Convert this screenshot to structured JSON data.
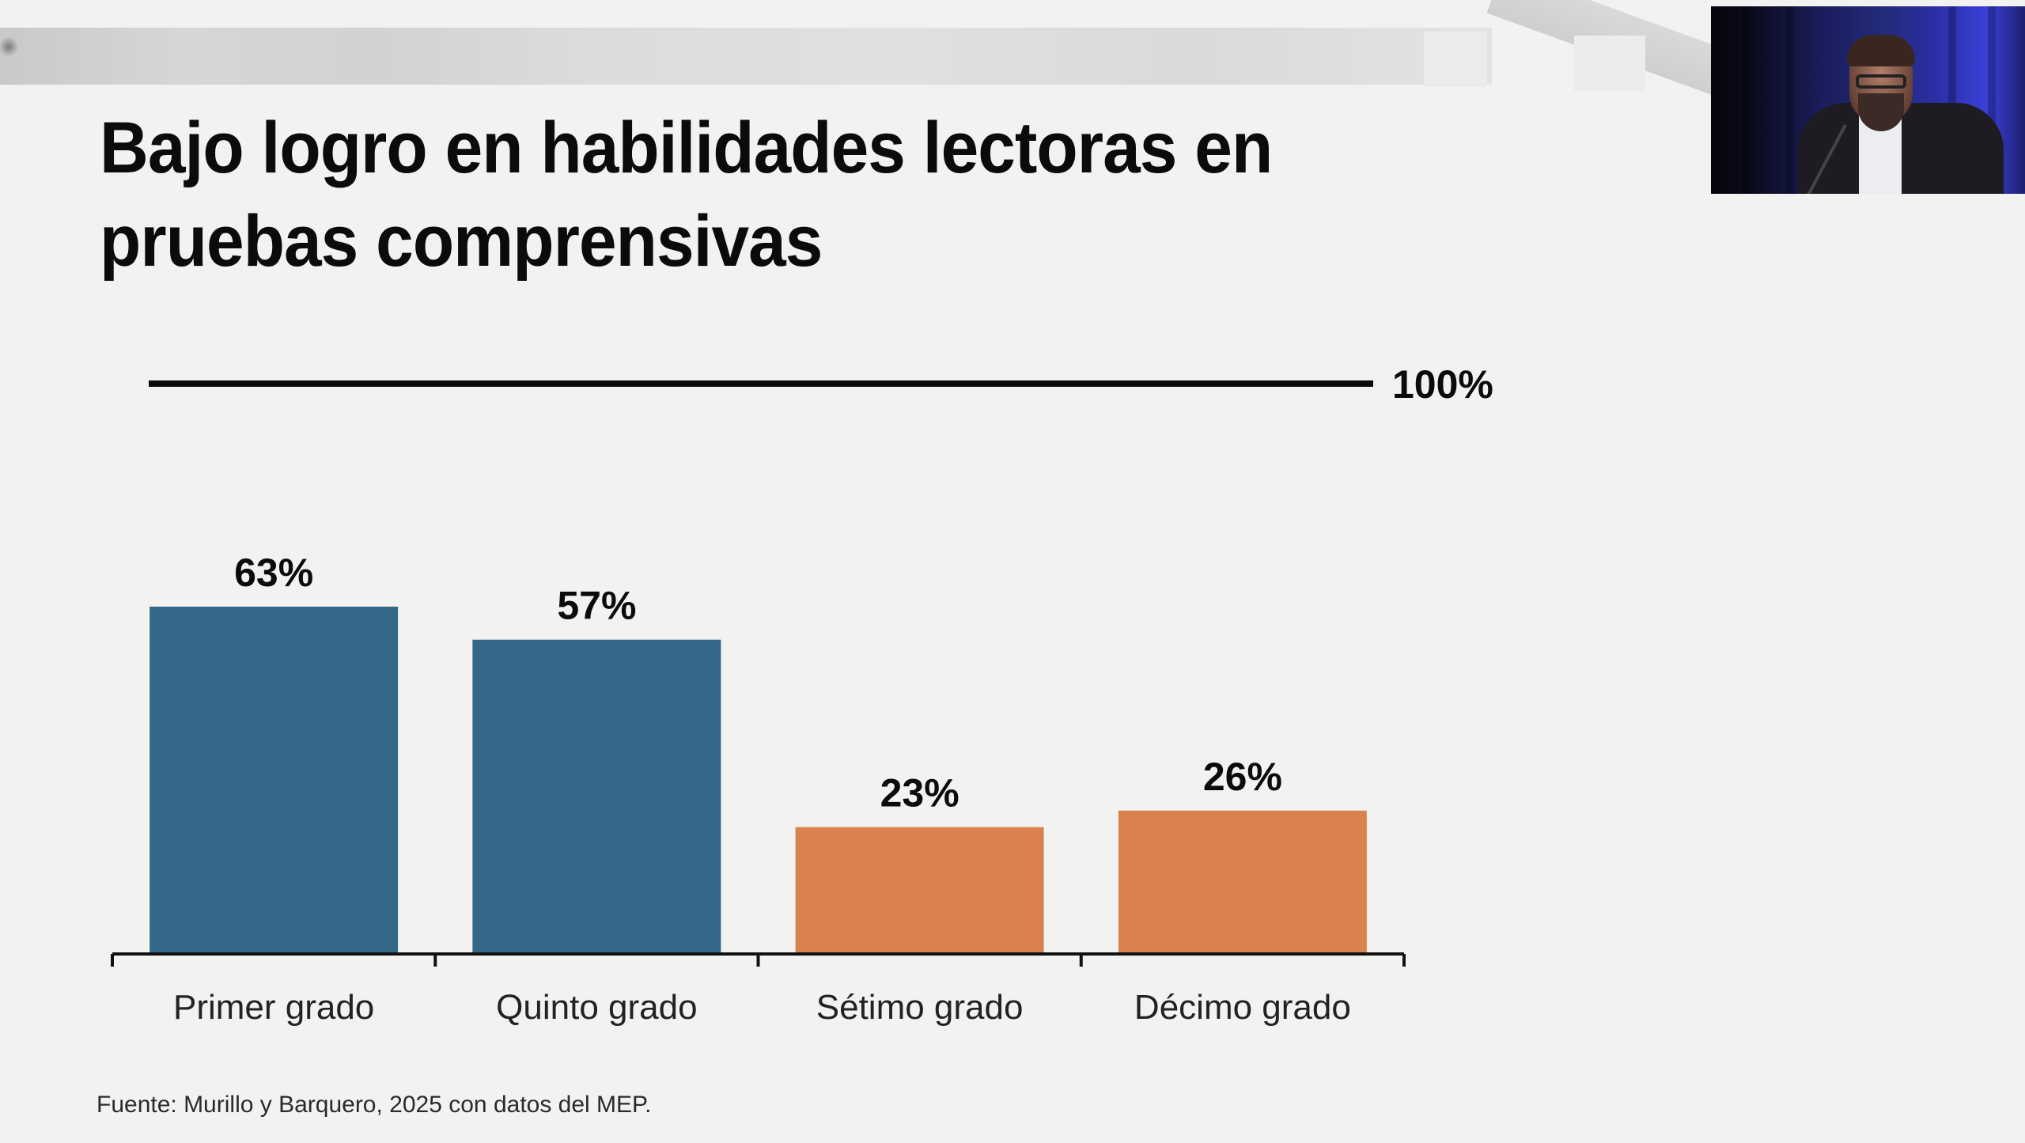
{
  "slide": {
    "title_lines": [
      "Bajo logro en habilidades lectoras en",
      "pruebas comprensivas"
    ],
    "source": "Fuente: Murillo y Barquero, 2025 con datos del MEP."
  },
  "webcam": {
    "description": "speaker-video-feed"
  },
  "colors": {
    "background": "#F2F2F1",
    "primary_bars": "#356888",
    "secondary_bars": "#D9824E",
    "text": "#0B0B0B"
  },
  "chart_data": {
    "type": "bar",
    "title": "Bajo logro en habilidades lectoras en pruebas comprensivas",
    "xlabel": "",
    "ylabel": "",
    "categories": [
      "Primer grado",
      "Quinto grado",
      "Sétimo grado",
      "Décimo grado"
    ],
    "values": [
      63,
      57,
      23,
      26
    ],
    "value_labels": [
      "63%",
      "57%",
      "23%",
      "26%"
    ],
    "bar_colors": [
      "#356888",
      "#356888",
      "#D9824E",
      "#D9824E"
    ],
    "ylim": [
      0,
      100
    ],
    "reference_line": {
      "value": 100,
      "label": "100%"
    },
    "grid": false,
    "legend": "none",
    "source": "Fuente: Murillo y Barquero, 2025 con datos del MEP."
  }
}
